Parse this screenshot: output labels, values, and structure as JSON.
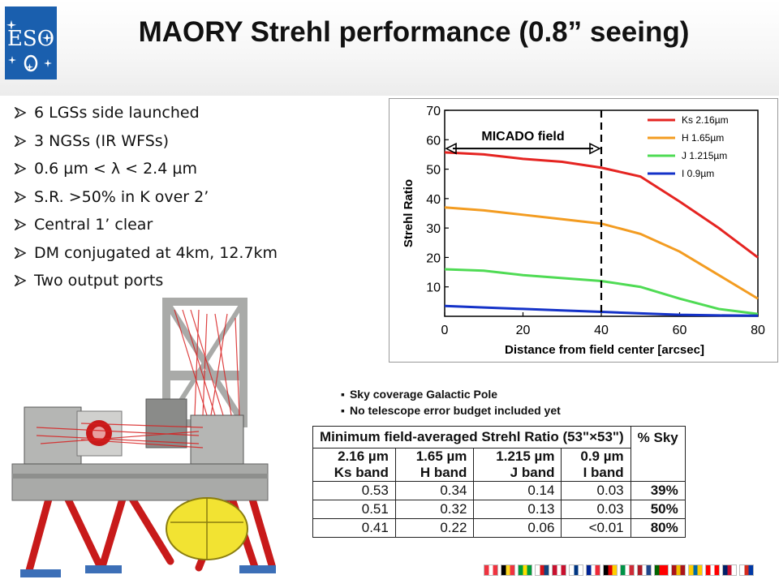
{
  "slide": {
    "title": "MAORY Strehl performance (0.8” seeing)",
    "logo_text": "ESO",
    "bullets": [
      "6 LGSs side launched",
      "3 NGSs (IR WFSs)",
      "0.6 µm < λ < 2.4 µm",
      "S.R. >50% in K over 2’",
      "Central 1’ clear",
      "DM conjugated at 4km, 12.7km",
      "Two output ports"
    ],
    "notes": [
      "Sky coverage Galactic Pole",
      "No telescope error budget included yet"
    ]
  },
  "chart_data": {
    "type": "line",
    "title": "",
    "xlabel": "Distance from field center [arcsec]",
    "ylabel": "Strehl Ratio",
    "xlim": [
      0,
      80
    ],
    "ylim": [
      0,
      70
    ],
    "xticks": [
      0,
      20,
      40,
      60,
      80
    ],
    "yticks": [
      10,
      20,
      30,
      40,
      50,
      60,
      70
    ],
    "grid": false,
    "legend": "top-right",
    "annotation": {
      "text": "MICADO field",
      "x_range": [
        0,
        40
      ],
      "y": 57,
      "marker_x": 40
    },
    "x": [
      0,
      10,
      20,
      30,
      40,
      50,
      60,
      70,
      80
    ],
    "series": [
      {
        "name": "Ks 2.16µm",
        "color": "#e52421",
        "values": [
          55.7,
          55,
          53.5,
          52.5,
          50.5,
          47.5,
          39,
          30,
          20
        ]
      },
      {
        "name": "H 1.65µm",
        "color": "#f39c21",
        "values": [
          37,
          36,
          34.5,
          33,
          31.5,
          28,
          22,
          14,
          6
        ]
      },
      {
        "name": "J 1.215µm",
        "color": "#4fdb54",
        "values": [
          16,
          15.5,
          14,
          13,
          12,
          10,
          6,
          2.5,
          0.8
        ]
      },
      {
        "name": "I 0.9µm",
        "color": "#1432c8",
        "values": [
          3.5,
          3,
          2.5,
          2,
          1.5,
          1,
          0.5,
          0.3,
          0.2
        ]
      }
    ]
  },
  "table": {
    "header_title": "Minimum field-averaged Strehl Ratio (53\"×53\")",
    "sky_header": "% Sky",
    "bands": [
      {
        "wavelength": "2.16 µm",
        "band": "Ks band"
      },
      {
        "wavelength": "1.65 µm",
        "band": "H band"
      },
      {
        "wavelength": "1.215 µm",
        "band": "J band"
      },
      {
        "wavelength": "0.9 µm",
        "band": "I band"
      }
    ],
    "rows": [
      {
        "values": [
          "0.53",
          "0.34",
          "0.14",
          "0.03"
        ],
        "sky": "39%"
      },
      {
        "values": [
          "0.51",
          "0.32",
          "0.13",
          "0.03"
        ],
        "sky": "50%"
      },
      {
        "values": [
          "0.41",
          "0.22",
          "0.06",
          "<0.01"
        ],
        "sky": "80%"
      }
    ]
  },
  "colors": {
    "logo_blue": "#1a5fae",
    "arrow": "#222222",
    "instrument_grey": "#a9aaa8",
    "instrument_red": "#c81a1a",
    "instrument_yellow": "#f2e332"
  },
  "flags": [
    [
      "#ef3340",
      "#ffffff",
      "#ef3340"
    ],
    [
      "#000000",
      "#fdda24",
      "#ef3340"
    ],
    [
      "#009c3b",
      "#ffdf00",
      "#009c3b"
    ],
    [
      "#ffffff",
      "#d7141a",
      "#11457e"
    ],
    [
      "#c8102e",
      "#ffffff",
      "#c8102e"
    ],
    [
      "#ffffff",
      "#003580",
      "#ffffff"
    ],
    [
      "#002395",
      "#ffffff",
      "#ed2939"
    ],
    [
      "#000000",
      "#dd0000",
      "#ffce00"
    ],
    [
      "#009246",
      "#ffffff",
      "#ce2b37"
    ],
    [
      "#ae1c28",
      "#ffffff",
      "#21468b"
    ],
    [
      "#006600",
      "#ff0000",
      "#ff0000"
    ],
    [
      "#aa151b",
      "#f1bf00",
      "#aa151b"
    ],
    [
      "#fecc00",
      "#006aa7",
      "#fecc00"
    ],
    [
      "#ff0000",
      "#ffffff",
      "#ff0000"
    ],
    [
      "#012169",
      "#c8102e",
      "#ffffff"
    ],
    [
      "#ffffff",
      "#d52b1e",
      "#0039a6"
    ]
  ]
}
